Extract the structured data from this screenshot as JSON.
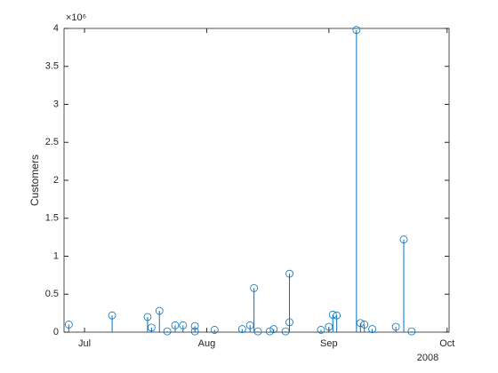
{
  "chart_data": {
    "type": "stem",
    "ylabel": "Customers",
    "y_exponent": "×10⁶",
    "x_year_label": "2008",
    "color": "#0072BD",
    "x": [
      179,
      190,
      199,
      200,
      202,
      204,
      206,
      208,
      211,
      211,
      216,
      223,
      225,
      226,
      227,
      230,
      231,
      234,
      235,
      235,
      243,
      245,
      246,
      247,
      252,
      253,
      254,
      256,
      262,
      264,
      266
    ],
    "values": [
      0.1,
      0.22,
      0.2,
      0.06,
      0.28,
      0.01,
      0.09,
      0.09,
      0.01,
      0.08,
      0.03,
      0.04,
      0.09,
      0.58,
      0.01,
      0.01,
      0.04,
      0.01,
      0.13,
      0.77,
      0.03,
      0.07,
      0.23,
      0.22,
      3.98,
      0.12,
      0.1,
      0.04,
      0.07,
      1.22,
      0.01
    ],
    "xlim": [
      177.8,
      275.5
    ],
    "xticks": [
      {
        "value": 183,
        "label": "Jul"
      },
      {
        "value": 214,
        "label": "Aug"
      },
      {
        "value": 245,
        "label": "Sep"
      },
      {
        "value": 275,
        "label": "Oct"
      }
    ],
    "ylim": [
      0,
      4
    ],
    "yticks": [
      0,
      0.5,
      1,
      1.5,
      2,
      2.5,
      3,
      3.5,
      4
    ],
    "grid": false
  }
}
